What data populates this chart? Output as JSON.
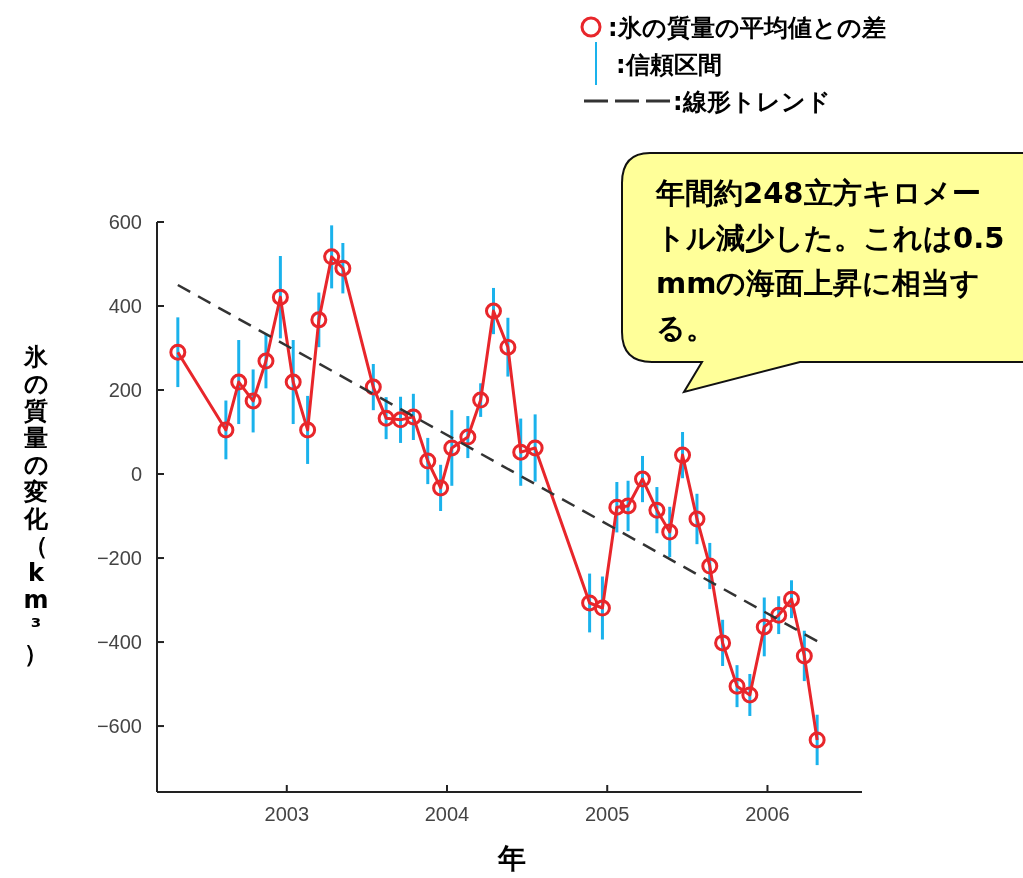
{
  "chart_data": {
    "type": "line",
    "xlabel": "年",
    "ylabel": "氷の質量の変化（km³）",
    "xlim": [
      2002.19,
      2006.59
    ],
    "ylim": [
      -757,
      600
    ],
    "xticks": [
      2003,
      2004,
      2005,
      2006
    ],
    "yticks": [
      600,
      400,
      200,
      0,
      {
        "value": -200,
        "label": "−200"
      },
      {
        "value": -400,
        "label": "−400"
      },
      {
        "value": -600,
        "label": "−600"
      }
    ],
    "grid": false,
    "legend": "top right",
    "annotations": [
      "年間約248立方キロメートル減少した。これは0.5mmの海面上昇に相当する。",
      ":信頼区間"
    ],
    "series": [
      {
        "name": ":氷の質量の平均値との差",
        "color": "#e8262b",
        "marker": "circle",
        "line_style": "solid",
        "x": [
          2002.32,
          2002.62,
          2002.7,
          2002.79,
          2002.87,
          2002.96,
          2003.04,
          2003.13,
          2003.2,
          2003.28,
          2003.35,
          2003.54,
          2003.62,
          2003.71,
          2003.79,
          2003.88,
          2003.96,
          2004.03,
          2004.13,
          2004.21,
          2004.29,
          2004.38,
          2004.46,
          2004.55,
          2004.89,
          2004.97,
          2005.06,
          2005.13,
          2005.22,
          2005.31,
          2005.39,
          2005.47,
          2005.56,
          2005.64,
          2005.72,
          2005.81,
          2005.89,
          2005.98,
          2006.07,
          2006.15,
          2006.23,
          2006.31
        ],
        "values": [
          290,
          105,
          219,
          174,
          269,
          421,
          219,
          105,
          367,
          517,
          490,
          207,
          133,
          129,
          136,
          31,
          -33,
          62,
          88,
          176,
          388,
          302,
          52,
          62,
          -307,
          -319,
          -79,
          -76,
          -12,
          -86,
          -138,
          45,
          -107,
          -219,
          -402,
          -505,
          -526,
          -364,
          -336,
          -298,
          -433,
          -633
        ],
        "errors": [
          83,
          70,
          100,
          75,
          65,
          98,
          100,
          81,
          65,
          75,
          60,
          55,
          50,
          55,
          55,
          55,
          55,
          90,
          50,
          40,
          55,
          70,
          80,
          80,
          70,
          75,
          60,
          60,
          55,
          55,
          60,
          55,
          60,
          55,
          55,
          50,
          50,
          70,
          45,
          45,
          60,
          60
        ]
      },
      {
        "name": ":線形トレンド",
        "color": "#333333",
        "marker": "none",
        "line_style": "dashed",
        "x": [
          2002.32,
          2006.31
        ],
        "values": [
          450,
          -398
        ]
      }
    ]
  }
}
